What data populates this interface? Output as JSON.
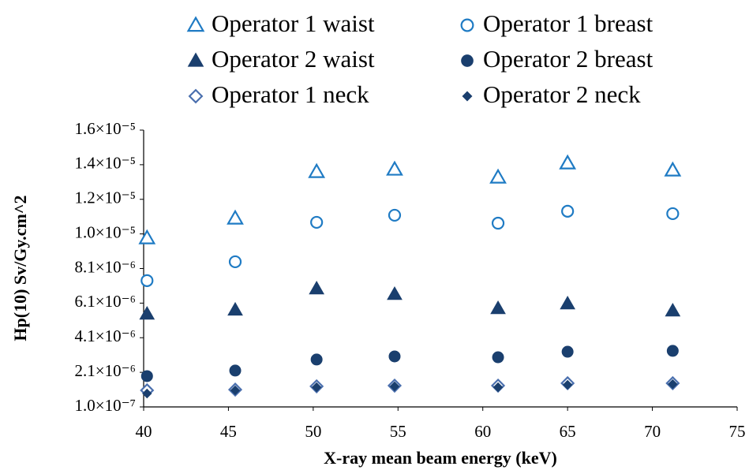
{
  "chart_data": {
    "type": "scatter",
    "x_label": "X-ray mean beam energy (keV)",
    "y_label": "Hp(10) Sv/Gy.cm^2",
    "x": [
      40.2,
      45.4,
      50.2,
      54.8,
      60.9,
      65,
      71.2
    ],
    "xlim": [
      40,
      75
    ],
    "xticks": [
      40,
      45,
      50,
      55,
      60,
      65,
      70,
      75
    ],
    "ylim": [
      1e-07,
      1.61e-05
    ],
    "yticks": [
      {
        "value": 1e-07,
        "label": "1.0×10⁻⁷"
      },
      {
        "value": 2.1e-06,
        "label": "2.1×10⁻⁶"
      },
      {
        "value": 4.1e-06,
        "label": "4.1×10⁻⁶"
      },
      {
        "value": 6.1e-06,
        "label": "6.1×10⁻⁶"
      },
      {
        "value": 8.1e-06,
        "label": "8.1×10⁻⁶"
      },
      {
        "value": 1.01e-05,
        "label": "1.0×10⁻⁵"
      },
      {
        "value": 1.21e-05,
        "label": "1.2×10⁻⁵"
      },
      {
        "value": 1.41e-05,
        "label": "1.4×10⁻⁵"
      },
      {
        "value": 1.61e-05,
        "label": "1.6×10⁻⁵"
      }
    ],
    "grid": false,
    "legend": "top",
    "series": [
      {
        "name": "Operator 1 waist",
        "color": "#1f7bc4",
        "marker": "triangle-open",
        "values": [
          9.86e-06,
          1.1e-05,
          1.369e-05,
          1.383e-05,
          1.337e-05,
          1.419e-05,
          1.378e-05
        ]
      },
      {
        "name": "Operator 1 breast",
        "color": "#1f7bc4",
        "marker": "circle-open",
        "values": [
          7.4e-06,
          8.49e-06,
          1.077e-05,
          1.118e-05,
          1.072e-05,
          1.141e-05,
          1.127e-05
        ]
      },
      {
        "name": "Operator 2 waist",
        "color": "#1a3f6e",
        "marker": "triangle",
        "values": [
          5.48e-06,
          5.71e-06,
          6.94e-06,
          6.62e-06,
          5.8e-06,
          6.07e-06,
          5.66e-06
        ]
      },
      {
        "name": "Operator 2 breast",
        "color": "#1a3f6e",
        "marker": "circle",
        "values": [
          1.88e-06,
          2.2e-06,
          2.84e-06,
          3.02e-06,
          2.97e-06,
          3.29e-06,
          3.34e-06
        ]
      },
      {
        "name": "Operator 1 neck",
        "color": "#4a6fae",
        "marker": "diamond-open",
        "values": [
          1.06e-06,
          1.1e-06,
          1.29e-06,
          1.33e-06,
          1.33e-06,
          1.47e-06,
          1.47e-06
        ]
      },
      {
        "name": "Operator 2 neck",
        "color": "#1a3f6e",
        "marker": "diamond",
        "values": [
          8.75e-07,
          1.06e-06,
          1.24e-06,
          1.29e-06,
          1.24e-06,
          1.38e-06,
          1.42e-06
        ]
      }
    ]
  }
}
